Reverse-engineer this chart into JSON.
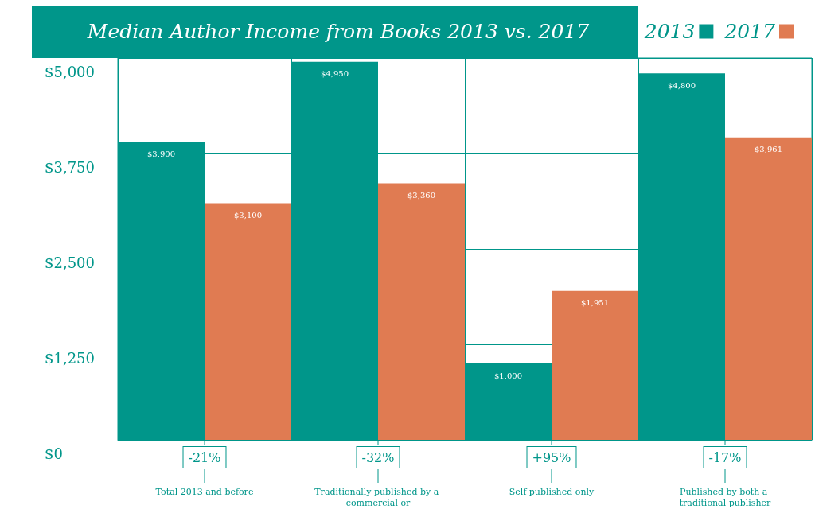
{
  "chart_data": {
    "type": "bar",
    "title": "Median Author Income from Books 2013 vs. 2017",
    "categories": [
      "Total 2013 and before",
      "Traditionally published by a commercial or",
      "Self-published only",
      "Published by both a traditional publisher"
    ],
    "series": [
      {
        "name": "2013",
        "color": "#00968a",
        "values": [
          3900,
          4950,
          1000,
          4800
        ],
        "value_labels": [
          "$3,900",
          "$4,950",
          "$1,000",
          "$4,800"
        ]
      },
      {
        "name": "2017",
        "color": "#e07b52",
        "values": [
          3100,
          3360,
          1951,
          3961
        ],
        "value_labels": [
          "$3,100",
          "$3,360",
          "$1,951",
          "$3,961"
        ]
      }
    ],
    "ylim": [
      0,
      5000
    ],
    "yticks": [
      {
        "value": 0,
        "label": "$0"
      },
      {
        "value": 1250,
        "label": "$1,250"
      },
      {
        "value": 2500,
        "label": "$2,500"
      },
      {
        "value": 3750,
        "label": "$3,750"
      },
      {
        "value": 5000,
        "label": "$5,000"
      }
    ],
    "annotations": [
      "-21%",
      "-32%",
      "+95%",
      "-17%"
    ],
    "grid": true,
    "legend": "top right"
  }
}
